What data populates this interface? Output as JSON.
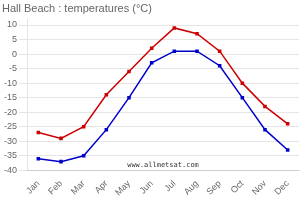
{
  "chart_data": {
    "type": "line",
    "title": "Hall Beach : temperatures (°C)",
    "categories": [
      "Jan",
      "Feb",
      "Mar",
      "Apr",
      "May",
      "Jun",
      "Jul",
      "Aug",
      "Sep",
      "Oct",
      "Nov",
      "Dec"
    ],
    "series": [
      {
        "color": "#cc0000",
        "marker": "square",
        "values": [
          -27,
          -29,
          -25,
          -14,
          -6,
          2,
          9,
          7,
          1,
          -10,
          -18,
          -24
        ]
      },
      {
        "color": "#0000cc",
        "marker": "square",
        "values": [
          -36,
          -37,
          -35,
          -26,
          -15,
          -3,
          1,
          1,
          -4,
          -15,
          -26,
          -33
        ]
      }
    ],
    "ylim": [
      -40,
      12
    ],
    "yticks": [
      -40,
      -35,
      -30,
      -25,
      -20,
      -15,
      -10,
      -5,
      0,
      5,
      10
    ],
    "grid": "y",
    "annotations": [
      "www.allmetsat.com"
    ]
  }
}
